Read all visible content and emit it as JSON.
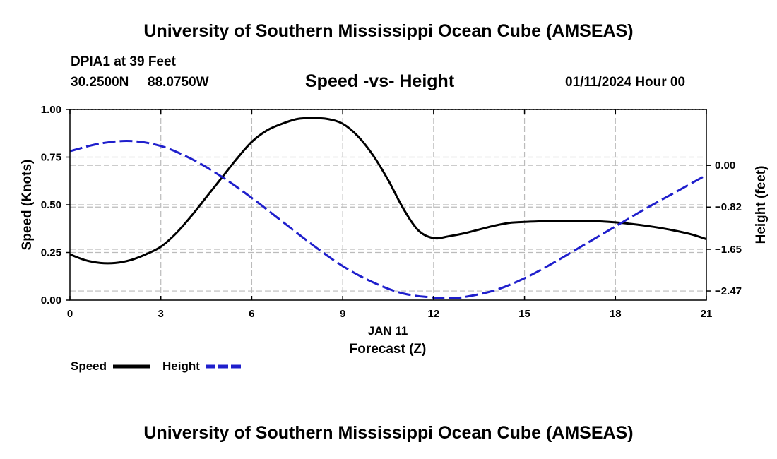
{
  "header": {
    "title": "University of Southern Mississippi Ocean Cube (AMSEAS)",
    "station": "DPIA1 at 39 Feet",
    "lat": "30.2500N",
    "lon": "88.0750W",
    "chart_title": "Speed -vs- Height",
    "datetime": "01/11/2024 Hour 00"
  },
  "footer": {
    "title": "University of Southern Mississippi Ocean Cube (AMSEAS)"
  },
  "legend": {
    "speed_label": "Speed",
    "height_label": "Height"
  },
  "colors": {
    "speed": "#000000",
    "height": "#1f1fcc",
    "grid": "#bbbbbb"
  },
  "chart_data": {
    "type": "line",
    "title": "Speed -vs- Height",
    "xlabel": "Forecast (Z)",
    "xsublabel": "JAN 11",
    "ylabel": "Speed (Knots)",
    "y2label": "Height (feet)",
    "xlim": [
      0,
      21
    ],
    "ylim": [
      0,
      1
    ],
    "y2lim": [
      -2.65,
      1.1
    ],
    "x_ticks": [
      0,
      3,
      6,
      9,
      12,
      15,
      18,
      21
    ],
    "x_tick_labels": [
      "0",
      "3",
      "6",
      "9",
      "12",
      "15",
      "18",
      "21"
    ],
    "y_ticks": [
      0,
      0.25,
      0.5,
      0.75,
      1.0
    ],
    "y_tick_labels": [
      "0.00",
      "0.25",
      "0.50",
      "0.75",
      "1.00"
    ],
    "y2_ticks": [
      0.0,
      -0.82,
      -1.65,
      -2.47
    ],
    "y2_tick_labels": [
      "0.00",
      "−0.82",
      "−1.65",
      "−2.47"
    ],
    "grid": true,
    "series": [
      {
        "name": "Speed",
        "axis": "left",
        "style": "solid",
        "x": [
          0,
          0.5,
          1,
          1.5,
          2,
          2.5,
          3,
          3.5,
          4,
          4.5,
          5,
          5.5,
          6,
          6.5,
          7,
          7.5,
          8,
          8.5,
          9,
          9.5,
          10,
          10.5,
          11,
          11.5,
          12,
          12.5,
          13,
          13.5,
          14,
          14.5,
          15,
          15.5,
          16,
          16.5,
          17,
          17.5,
          18,
          18.5,
          19,
          19.5,
          20,
          20.5,
          21
        ],
        "values": [
          0.24,
          0.21,
          0.195,
          0.195,
          0.21,
          0.24,
          0.28,
          0.35,
          0.44,
          0.54,
          0.64,
          0.74,
          0.83,
          0.89,
          0.925,
          0.95,
          0.955,
          0.95,
          0.925,
          0.86,
          0.76,
          0.63,
          0.48,
          0.365,
          0.325,
          0.335,
          0.35,
          0.37,
          0.39,
          0.405,
          0.41,
          0.413,
          0.415,
          0.416,
          0.415,
          0.413,
          0.408,
          0.4,
          0.39,
          0.378,
          0.363,
          0.345,
          0.32
        ]
      },
      {
        "name": "Height",
        "axis": "right",
        "style": "dashed",
        "x": [
          0,
          1,
          2,
          3,
          4,
          5,
          6,
          7,
          8,
          9,
          10,
          11,
          12,
          12.5,
          13,
          14,
          15,
          16,
          17,
          18,
          19,
          20,
          21
        ],
        "values": [
          0.28,
          0.43,
          0.48,
          0.38,
          0.13,
          -0.22,
          -0.64,
          -1.1,
          -1.56,
          -1.98,
          -2.3,
          -2.52,
          -2.6,
          -2.61,
          -2.59,
          -2.46,
          -2.22,
          -1.9,
          -1.55,
          -1.2,
          -0.85,
          -0.52,
          -0.19
        ]
      }
    ]
  }
}
